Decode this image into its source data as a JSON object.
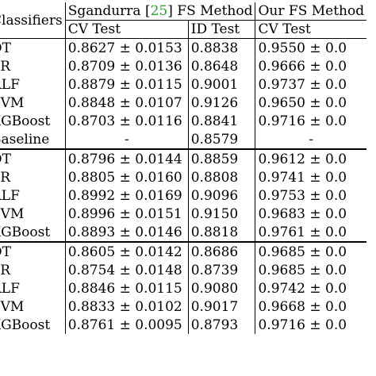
{
  "table": {
    "header": {
      "classifiers": "Classifiers",
      "sgandurra_prefix": "Sgandurra [",
      "sgandurra_ref": "25",
      "sgandurra_suffix": "] FS Method",
      "our_method": "Our FS Method",
      "cv_test": "CV Test",
      "id_test": "ID Test",
      "cv_test_our": "CV Test"
    },
    "groups": [
      {
        "rows": [
          {
            "clf": "DT",
            "sg_cv": "0.8627 ± 0.0153",
            "sg_id": "0.8838",
            "our_cv": "0.9550 ± 0.0"
          },
          {
            "clf": "LR",
            "sg_cv": "0.8709 ± 0.0136",
            "sg_id": "0.8648",
            "our_cv": "0.9666 ± 0.0"
          },
          {
            "clf": "RLF",
            "sg_cv": "0.8879 ± 0.0115",
            "sg_id": "0.9001",
            "our_cv": "0.9737 ± 0.0"
          },
          {
            "clf": "SVM",
            "sg_cv": "0.8848 ± 0.0107",
            "sg_id": "0.9126",
            "our_cv": "0.9650 ± 0.0"
          },
          {
            "clf": "XGBoost",
            "sg_cv": "0.8703 ± 0.0116",
            "sg_id": "0.8841",
            "our_cv": "0.9716 ± 0.0"
          },
          {
            "clf": "Baseline",
            "sg_cv": "-",
            "sg_id": "0.8579",
            "our_cv": "-"
          }
        ]
      },
      {
        "rows": [
          {
            "clf": "DT",
            "sg_cv": "0.8796 ± 0.0144",
            "sg_id": "0.8859",
            "our_cv": "0.9612 ± 0.0"
          },
          {
            "clf": "LR",
            "sg_cv": "0.8805 ± 0.0160",
            "sg_id": "0.8808",
            "our_cv": "0.9741 ± 0.0"
          },
          {
            "clf": "RLF",
            "sg_cv": "0.8992 ± 0.0169",
            "sg_id": "0.9096",
            "our_cv": "0.9753 ± 0.0"
          },
          {
            "clf": "SVM",
            "sg_cv": "0.8996 ± 0.0151",
            "sg_id": "0.9150",
            "our_cv": "0.9683 ± 0.0"
          },
          {
            "clf": "XGBoost",
            "sg_cv": "0.8893 ± 0.0146",
            "sg_id": "0.8818",
            "our_cv": "0.9761 ± 0.0"
          }
        ]
      },
      {
        "rows": [
          {
            "clf": "DT",
            "sg_cv": "0.8605 ± 0.0142",
            "sg_id": "0.8686",
            "our_cv": "0.9685 ± 0.0"
          },
          {
            "clf": "LR",
            "sg_cv": "0.8754 ± 0.0148",
            "sg_id": "0.8739",
            "our_cv": "0.9685 ± 0.0"
          },
          {
            "clf": "RLF",
            "sg_cv": "0.8846 ± 0.0115",
            "sg_id": "0.9080",
            "our_cv": "0.9742 ± 0.0"
          },
          {
            "clf": "SVM",
            "sg_cv": "0.8833 ± 0.0102",
            "sg_id": "0.9017",
            "our_cv": "0.9668 ± 0.0"
          },
          {
            "clf": "XGBoost",
            "sg_cv": "0.8761 ± 0.0095",
            "sg_id": "0.8793",
            "our_cv": "0.9716 ± 0.0"
          }
        ]
      }
    ]
  }
}
